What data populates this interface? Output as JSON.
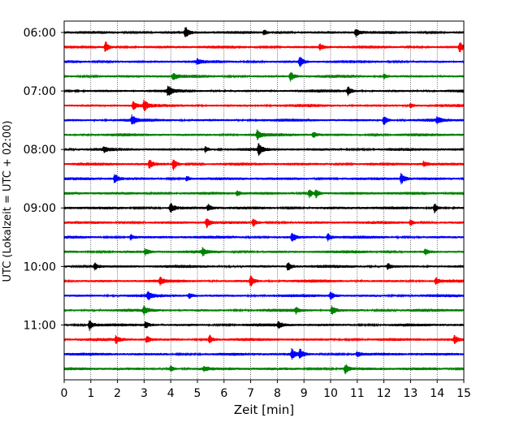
{
  "chart_data": {
    "type": "line",
    "title": "",
    "xlabel": "Zeit  [min]",
    "ylabel": "UTC (Lokalzeit = UTC + 02:00)",
    "xlim": [
      0,
      15
    ],
    "x_ticks": [
      0,
      1,
      2,
      3,
      4,
      5,
      6,
      7,
      8,
      9,
      10,
      11,
      12,
      13,
      14,
      15
    ],
    "x_tick_labels": [
      "0",
      "1",
      "2",
      "3",
      "4",
      "5",
      "6",
      "7",
      "8",
      "9",
      "10",
      "11",
      "12",
      "13",
      "14",
      "15"
    ],
    "y_tick_labels": [
      "06:00",
      "07:00",
      "08:00",
      "09:00",
      "10:00",
      "11:00"
    ],
    "grid": "vertical-dotted",
    "row_colors": [
      "#000000",
      "#ff0000",
      "#0000ff",
      "#008000"
    ],
    "row_start_times": [
      "06:00",
      "06:15",
      "06:30",
      "06:45",
      "07:00",
      "07:15",
      "07:30",
      "07:45",
      "08:00",
      "08:15",
      "08:30",
      "08:45",
      "09:00",
      "09:15",
      "09:30",
      "09:45",
      "10:00",
      "10:15",
      "10:30",
      "10:45",
      "11:00",
      "11:15",
      "11:30",
      "11:45"
    ],
    "series": [
      {
        "start": "06:00",
        "events": [
          {
            "t": 4.55,
            "amp": 0.9
          },
          {
            "t": 10.95,
            "amp": 0.7
          },
          {
            "t": 7.5,
            "amp": 0.4
          }
        ]
      },
      {
        "start": "06:15",
        "events": [
          {
            "t": 1.55,
            "amp": 1.0
          },
          {
            "t": 9.6,
            "amp": 0.5
          },
          {
            "t": 14.85,
            "amp": 0.9
          }
        ]
      },
      {
        "start": "06:30",
        "events": [
          {
            "t": 8.85,
            "amp": 0.9
          },
          {
            "t": 5.0,
            "amp": 0.4
          }
        ]
      },
      {
        "start": "06:45",
        "events": [
          {
            "t": 4.1,
            "amp": 0.6
          },
          {
            "t": 8.5,
            "amp": 0.8
          },
          {
            "t": 12.0,
            "amp": 0.4
          }
        ]
      },
      {
        "start": "07:00",
        "events": [
          {
            "t": 3.9,
            "amp": 0.9
          },
          {
            "t": 10.65,
            "amp": 0.8
          }
        ]
      },
      {
        "start": "07:15",
        "events": [
          {
            "t": 2.6,
            "amp": 0.7
          },
          {
            "t": 3.0,
            "amp": 0.9
          },
          {
            "t": 13.0,
            "amp": 0.4
          }
        ]
      },
      {
        "start": "07:30",
        "events": [
          {
            "t": 2.55,
            "amp": 0.8
          },
          {
            "t": 12.0,
            "amp": 0.8
          },
          {
            "t": 14.0,
            "amp": 0.5
          }
        ]
      },
      {
        "start": "07:45",
        "events": [
          {
            "t": 7.25,
            "amp": 0.8
          },
          {
            "t": 9.35,
            "amp": 0.5
          }
        ]
      },
      {
        "start": "08:00",
        "events": [
          {
            "t": 7.3,
            "amp": 1.0
          },
          {
            "t": 5.3,
            "amp": 0.5
          },
          {
            "t": 1.5,
            "amp": 0.4
          }
        ]
      },
      {
        "start": "08:15",
        "events": [
          {
            "t": 3.2,
            "amp": 0.8
          },
          {
            "t": 4.1,
            "amp": 0.9
          },
          {
            "t": 13.5,
            "amp": 0.4
          }
        ]
      },
      {
        "start": "08:30",
        "events": [
          {
            "t": 1.9,
            "amp": 0.8
          },
          {
            "t": 12.65,
            "amp": 0.9
          },
          {
            "t": 4.6,
            "amp": 0.5
          }
        ]
      },
      {
        "start": "08:45",
        "events": [
          {
            "t": 9.2,
            "amp": 0.8
          },
          {
            "t": 9.45,
            "amp": 0.7
          },
          {
            "t": 6.5,
            "amp": 0.4
          }
        ]
      },
      {
        "start": "09:00",
        "events": [
          {
            "t": 4.0,
            "amp": 0.9
          },
          {
            "t": 13.9,
            "amp": 0.8
          },
          {
            "t": 5.4,
            "amp": 0.5
          }
        ]
      },
      {
        "start": "09:15",
        "events": [
          {
            "t": 5.35,
            "amp": 0.8
          },
          {
            "t": 7.1,
            "amp": 0.6
          },
          {
            "t": 13.0,
            "amp": 0.5
          }
        ]
      },
      {
        "start": "09:30",
        "events": [
          {
            "t": 8.55,
            "amp": 0.8
          },
          {
            "t": 9.9,
            "amp": 0.6
          },
          {
            "t": 2.5,
            "amp": 0.4
          }
        ]
      },
      {
        "start": "09:45",
        "events": [
          {
            "t": 3.05,
            "amp": 0.5
          },
          {
            "t": 5.2,
            "amp": 0.6
          },
          {
            "t": 13.55,
            "amp": 0.5
          }
        ]
      },
      {
        "start": "10:00",
        "events": [
          {
            "t": 1.15,
            "amp": 0.6
          },
          {
            "t": 8.4,
            "amp": 0.8
          },
          {
            "t": 12.15,
            "amp": 0.5
          }
        ]
      },
      {
        "start": "10:15",
        "events": [
          {
            "t": 3.6,
            "amp": 0.6
          },
          {
            "t": 7.0,
            "amp": 0.9
          },
          {
            "t": 13.95,
            "amp": 0.6
          }
        ]
      },
      {
        "start": "10:30",
        "events": [
          {
            "t": 3.15,
            "amp": 0.7
          },
          {
            "t": 10.0,
            "amp": 0.7
          },
          {
            "t": 4.7,
            "amp": 0.5
          }
        ]
      },
      {
        "start": "10:45",
        "events": [
          {
            "t": 3.0,
            "amp": 0.7
          },
          {
            "t": 10.05,
            "amp": 0.8
          },
          {
            "t": 8.7,
            "amp": 0.5
          }
        ]
      },
      {
        "start": "11:00",
        "events": [
          {
            "t": 0.95,
            "amp": 0.8
          },
          {
            "t": 3.05,
            "amp": 0.6
          },
          {
            "t": 8.05,
            "amp": 0.5
          }
        ]
      },
      {
        "start": "11:15",
        "events": [
          {
            "t": 1.95,
            "amp": 0.6
          },
          {
            "t": 3.1,
            "amp": 0.6
          },
          {
            "t": 5.45,
            "amp": 0.8
          },
          {
            "t": 14.65,
            "amp": 0.6
          }
        ]
      },
      {
        "start": "11:30",
        "events": [
          {
            "t": 8.55,
            "amp": 0.9
          },
          {
            "t": 8.85,
            "amp": 0.8
          },
          {
            "t": 11.0,
            "amp": 0.4
          }
        ]
      },
      {
        "start": "11:45",
        "events": [
          {
            "t": 10.55,
            "amp": 0.8
          },
          {
            "t": 4.0,
            "amp": 0.5
          },
          {
            "t": 5.25,
            "amp": 0.4
          }
        ]
      }
    ]
  }
}
